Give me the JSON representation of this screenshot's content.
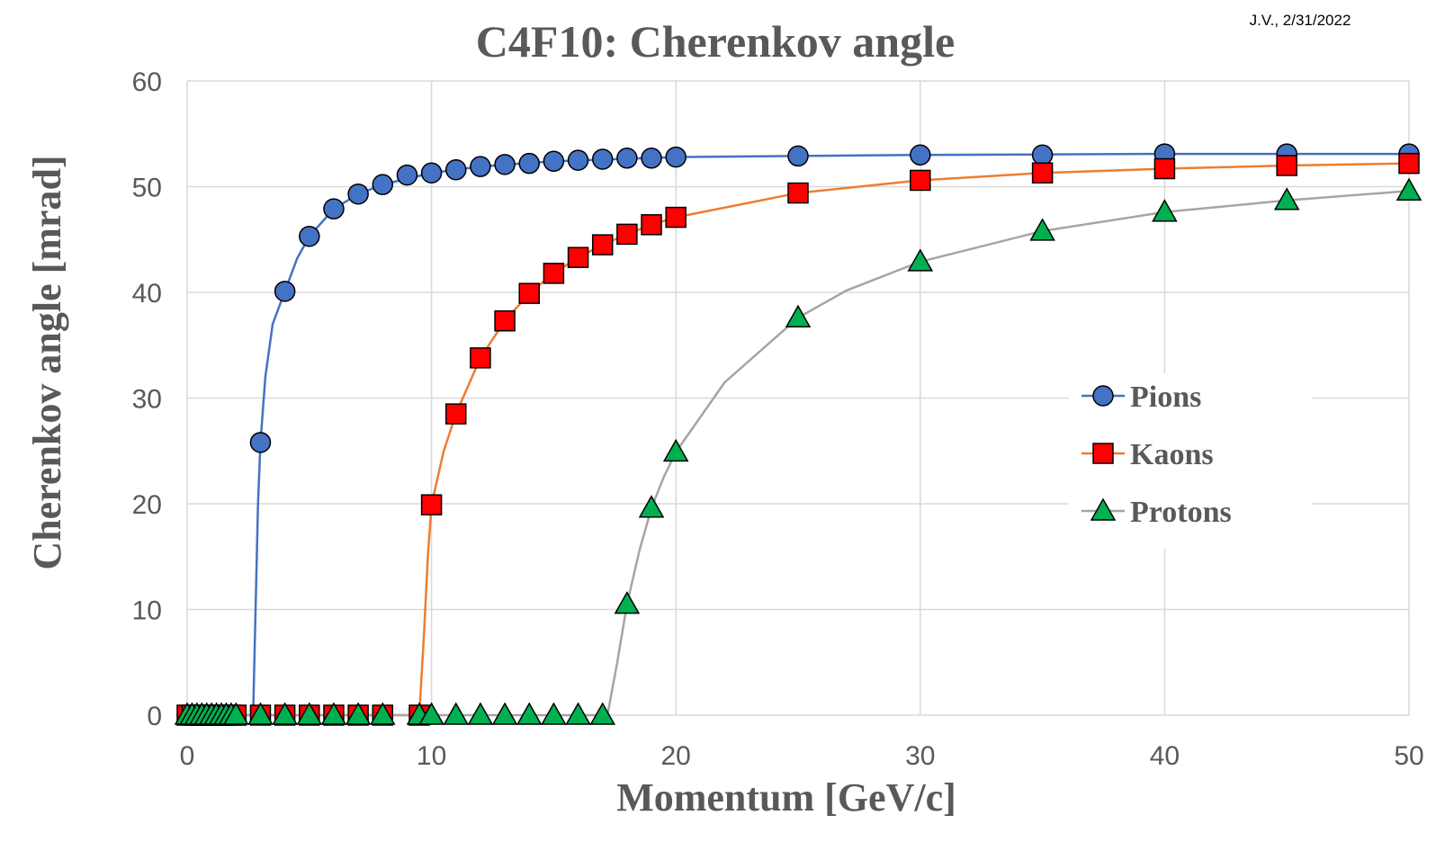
{
  "note": "J.V., 2/31/2022",
  "colors": {
    "grid": "#d9d9d9",
    "text": "#595959",
    "pions_line": "#4472c4",
    "pions_marker": "#4472c4",
    "kaons_line": "#ed7d31",
    "kaons_marker": "#ff0000",
    "protons_line": "#a5a5a5",
    "protons_marker": "#00b050"
  },
  "chart_data": {
    "type": "scatter",
    "title": "C4F10: Cherenkov angle",
    "xlabel": "Momentum [GeV/c]",
    "ylabel": "Cherenkov angle [mrad]",
    "xlim": [
      0,
      50
    ],
    "ylim": [
      0,
      60
    ],
    "xticks": [
      0,
      10,
      20,
      30,
      40,
      50
    ],
    "yticks": [
      0,
      10,
      20,
      30,
      40,
      50,
      60
    ],
    "grid": true,
    "legend_position": "right",
    "series": [
      {
        "name": "Pions",
        "marker": "circle",
        "x": [
          0,
          0.2,
          0.4,
          0.6,
          0.8,
          1.0,
          1.2,
          1.4,
          1.6,
          1.8,
          2.0,
          3,
          4,
          5,
          6,
          7,
          8,
          9,
          10,
          11,
          12,
          13,
          14,
          15,
          16,
          17,
          18,
          19,
          20,
          25,
          30,
          35,
          40,
          45,
          50
        ],
        "y": [
          0,
          0,
          0,
          0,
          0,
          0,
          0,
          0,
          0,
          0,
          0,
          25.8,
          40.1,
          45.3,
          47.9,
          49.3,
          50.2,
          51.1,
          51.3,
          51.6,
          51.9,
          52.1,
          52.2,
          52.4,
          52.5,
          52.6,
          52.7,
          52.7,
          52.8,
          52.9,
          53.0,
          53.0,
          53.1,
          53.1,
          53.1
        ],
        "curve_x": [
          0,
          2.7,
          2.8,
          2.9,
          3.0,
          3.2,
          3.5,
          4,
          4.5,
          5,
          6,
          7,
          8,
          10,
          12,
          15,
          20,
          25,
          30,
          40,
          50
        ],
        "curve_y": [
          0,
          0,
          10,
          20,
          25.8,
          32,
          37,
          40.1,
          43.2,
          45.3,
          47.9,
          49.3,
          50.2,
          51.3,
          51.9,
          52.4,
          52.8,
          52.9,
          53.0,
          53.1,
          53.1
        ]
      },
      {
        "name": "Kaons",
        "marker": "square",
        "x": [
          0,
          0.2,
          0.4,
          0.6,
          0.8,
          1.0,
          1.2,
          1.4,
          1.6,
          1.8,
          2.0,
          3,
          4,
          5,
          6,
          7,
          8,
          9.5,
          10,
          11,
          12,
          13,
          14,
          15,
          16,
          17,
          18,
          19,
          20,
          25,
          30,
          35,
          40,
          45,
          50
        ],
        "y": [
          0,
          0,
          0,
          0,
          0,
          0,
          0,
          0,
          0,
          0,
          0,
          0,
          0,
          0,
          0,
          0,
          0,
          0,
          19.9,
          28.5,
          33.8,
          37.3,
          39.9,
          41.8,
          43.3,
          44.5,
          45.5,
          46.4,
          47.1,
          49.4,
          50.6,
          51.3,
          51.7,
          52.0,
          52.2
        ],
        "curve_x": [
          0,
          9.5,
          9.7,
          9.85,
          10,
          10.5,
          11,
          12,
          13,
          14,
          15,
          16,
          17,
          18,
          19,
          20,
          25,
          30,
          35,
          40,
          45,
          50
        ],
        "curve_y": [
          0,
          0,
          8,
          15,
          19.9,
          25,
          28.5,
          33.8,
          37.3,
          39.9,
          41.8,
          43.3,
          44.5,
          45.5,
          46.4,
          47.1,
          49.4,
          50.6,
          51.3,
          51.7,
          52.0,
          52.2
        ]
      },
      {
        "name": "Protons",
        "marker": "triangle",
        "x": [
          0,
          0.2,
          0.4,
          0.6,
          0.8,
          1.0,
          1.2,
          1.4,
          1.6,
          1.8,
          2.0,
          3,
          4,
          5,
          6,
          7,
          8,
          9.5,
          10,
          11,
          12,
          13,
          14,
          15,
          16,
          17,
          18,
          19,
          20,
          25,
          30,
          35,
          40,
          45,
          50
        ],
        "y": [
          0,
          0,
          0,
          0,
          0,
          0,
          0,
          0,
          0,
          0,
          0,
          0,
          0,
          0,
          0,
          0,
          0,
          0,
          0,
          0,
          0,
          0,
          0,
          0,
          0,
          0,
          10.5,
          19.6,
          24.9,
          37.6,
          42.9,
          45.8,
          47.6,
          48.7,
          49.6
        ],
        "curve_x": [
          0,
          17.2,
          17.6,
          18,
          18.5,
          19,
          19.5,
          20,
          22,
          25,
          27,
          30,
          35,
          40,
          45,
          50
        ],
        "curve_y": [
          0,
          0,
          5,
          10.5,
          15.5,
          19.6,
          22.5,
          24.9,
          31.5,
          37.6,
          40.2,
          42.9,
          45.8,
          47.6,
          48.7,
          49.6
        ]
      }
    ]
  }
}
